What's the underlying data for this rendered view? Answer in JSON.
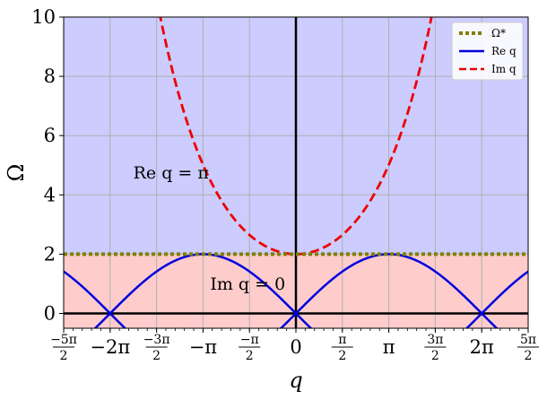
{
  "chart_data": {
    "type": "line",
    "title": "",
    "xlabel": "q",
    "ylabel": "Ω",
    "xlim": [
      -7.854,
      7.854
    ],
    "ylim": [
      -0.5,
      10
    ],
    "grid": true,
    "legend_position": "top-right",
    "x_ticks": [
      {
        "value": -7.854,
        "label": "-5π/2",
        "num": "−5π",
        "den": "2"
      },
      {
        "value": -6.283,
        "label": "−2π"
      },
      {
        "value": -4.712,
        "label": "-3π/2",
        "num": "−3π",
        "den": "2"
      },
      {
        "value": -3.1416,
        "label": "−π"
      },
      {
        "value": -1.5708,
        "label": "-π/2",
        "num": "−π",
        "den": "2"
      },
      {
        "value": 0,
        "label": "0"
      },
      {
        "value": 1.5708,
        "label": "π/2",
        "num": "π",
        "den": "2"
      },
      {
        "value": 3.1416,
        "label": "π"
      },
      {
        "value": 4.712,
        "label": "3π/2",
        "num": "3π",
        "den": "2"
      },
      {
        "value": 6.283,
        "label": "2π"
      },
      {
        "value": 7.854,
        "label": "5π/2",
        "num": "5π",
        "den": "2"
      }
    ],
    "y_ticks": [
      {
        "value": 0,
        "label": "0"
      },
      {
        "value": 2,
        "label": "2"
      },
      {
        "value": 4,
        "label": "4"
      },
      {
        "value": 6,
        "label": "6"
      },
      {
        "value": 8,
        "label": "8"
      },
      {
        "value": 10,
        "label": "10"
      }
    ],
    "regions": [
      {
        "label": "Re q = π",
        "ymin": 2,
        "ymax": 10,
        "color": "#ccccff",
        "label_x": -5.5,
        "label_y": 4.55
      },
      {
        "label": "Im q = 0",
        "ymin": -0.5,
        "ymax": 2,
        "color": "#ffcccc",
        "label_x": -2.9,
        "label_y": 0.8
      }
    ],
    "series": [
      {
        "name": "Ω*",
        "style": "dotted",
        "color": "#808000",
        "function": "constant",
        "value": 2
      },
      {
        "name": "Re q",
        "style": "solid",
        "color": "#0000dd",
        "function": "2|sin(q/2)|"
      },
      {
        "name": "Im q",
        "style": "dashed",
        "color": "#ee0000",
        "function": "2cosh(q/2)"
      }
    ],
    "colors": {
      "axes_lines": "#000000",
      "grid": "#b0b0b0"
    }
  }
}
